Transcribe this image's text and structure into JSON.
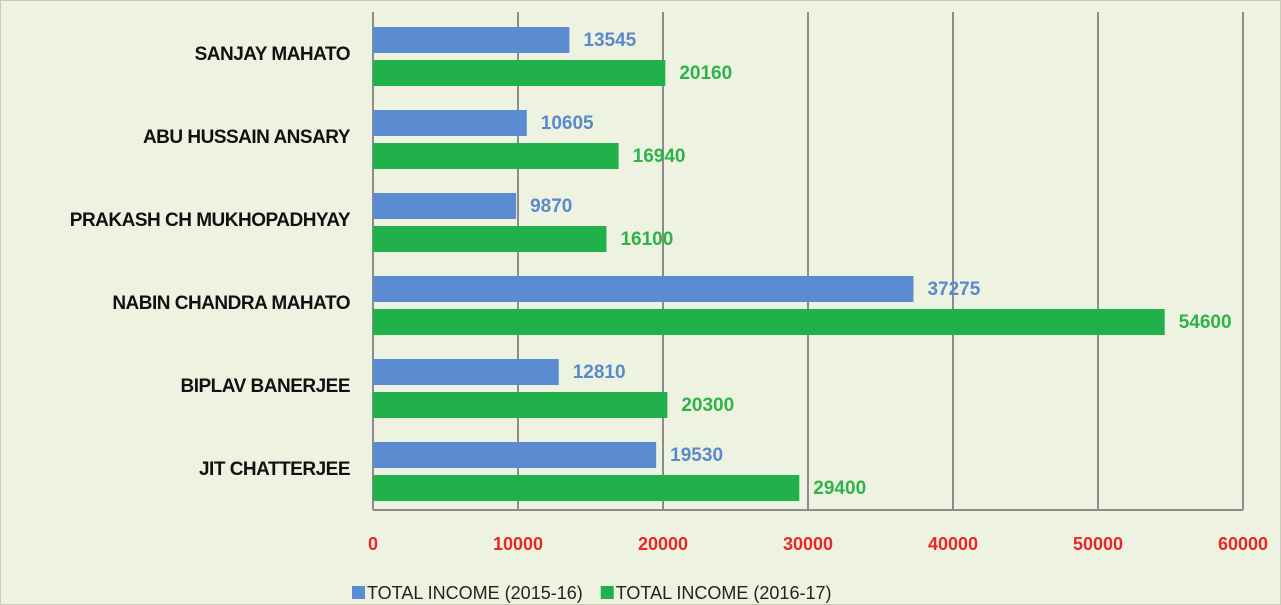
{
  "chart_data": {
    "type": "bar",
    "orientation": "horizontal",
    "categories": [
      "SANJAY MAHATO",
      "ABU HUSSAIN ANSARY",
      "PRAKASH CH MUKHOPADHYAY",
      "NABIN CHANDRA MAHATO",
      "BIPLAV BANERJEE",
      "JIT CHATTERJEE"
    ],
    "series": [
      {
        "name": "TOTAL INCOME (2015-16)",
        "color": "#5b8bd0",
        "label_color": "#5a89cc",
        "values": [
          13545,
          10605,
          9870,
          37275,
          12810,
          19530
        ]
      },
      {
        "name": "TOTAL INCOME (2016-17)",
        "color": "#21b14a",
        "label_color": "#2db34a",
        "values": [
          20160,
          16940,
          16100,
          54600,
          20300,
          29400
        ]
      }
    ],
    "xlim": [
      0,
      60000
    ],
    "xticks": [
      0,
      10000,
      20000,
      30000,
      40000,
      50000,
      60000
    ],
    "grid": true,
    "legend": "bottom"
  }
}
